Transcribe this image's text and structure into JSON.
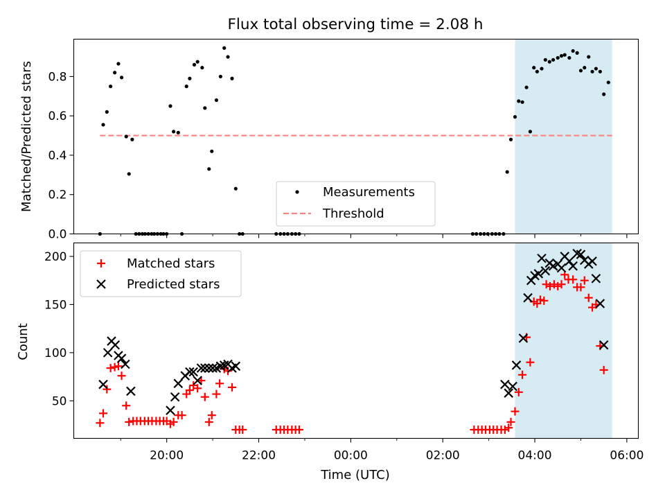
{
  "chart_data": {
    "title": "Flux total observing time = 2.08 h",
    "xlabel": "Time (UTC)",
    "x_unit": "hours UTC (values past 24 are the following day)",
    "xlim": [
      17.98,
      30.25
    ],
    "x_ticks": [
      {
        "value": 20,
        "label": "20:00"
      },
      {
        "value": 22,
        "label": "22:00"
      },
      {
        "value": 24,
        "label": "00:00"
      },
      {
        "value": 26,
        "label": "02:00"
      },
      {
        "value": 28,
        "label": "04:00"
      },
      {
        "value": 30,
        "label": "06:00"
      }
    ],
    "x_minor_ticks": [
      19,
      21,
      23,
      25,
      27,
      29
    ],
    "highlight": {
      "x0": 27.57,
      "x1": 29.68,
      "color": "#add8e6",
      "opacity": 0.5
    },
    "panels": [
      {
        "type": "scatter",
        "ylabel": "Matched/Predicted stars",
        "ylim": [
          0,
          0.99
        ],
        "y_ticks": [
          0.0,
          0.2,
          0.4,
          0.6,
          0.8
        ],
        "y_tick_labels": [
          "0.0",
          "0.2",
          "0.4",
          "0.6",
          "0.8"
        ],
        "legend": {
          "position": "lower center",
          "entries": [
            "Measurements",
            "Threshold"
          ]
        },
        "threshold": {
          "name": "Threshold",
          "y": 0.5,
          "x0": 18.55,
          "x1": 29.68,
          "color": "#ff8080",
          "style": "dashed"
        },
        "series": [
          {
            "name": "Measurements",
            "marker": "dot",
            "color": "#000000",
            "points": [
              [
                18.55,
                0.0
              ],
              [
                18.62,
                0.555
              ],
              [
                18.7,
                0.62
              ],
              [
                18.78,
                0.75
              ],
              [
                18.87,
                0.82
              ],
              [
                18.95,
                0.865
              ],
              [
                19.02,
                0.795
              ],
              [
                19.12,
                0.495
              ],
              [
                19.18,
                0.305
              ],
              [
                19.25,
                0.48
              ],
              [
                19.33,
                0.0
              ],
              [
                19.4,
                0.0
              ],
              [
                19.47,
                0.0
              ],
              [
                19.53,
                0.0
              ],
              [
                19.6,
                0.0
              ],
              [
                19.67,
                0.0
              ],
              [
                19.73,
                0.0
              ],
              [
                19.8,
                0.0
              ],
              [
                19.87,
                0.0
              ],
              [
                19.93,
                0.0
              ],
              [
                20.0,
                0.0
              ],
              [
                20.08,
                0.65
              ],
              [
                20.15,
                0.52
              ],
              [
                20.25,
                0.515
              ],
              [
                20.33,
                0.0
              ],
              [
                20.43,
                0.75
              ],
              [
                20.5,
                0.79
              ],
              [
                20.6,
                0.86
              ],
              [
                20.67,
                0.875
              ],
              [
                20.77,
                0.845
              ],
              [
                20.83,
                0.64
              ],
              [
                20.92,
                0.33
              ],
              [
                20.98,
                0.42
              ],
              [
                21.08,
                0.68
              ],
              [
                21.17,
                0.8
              ],
              [
                21.25,
                0.945
              ],
              [
                21.33,
                0.9
              ],
              [
                21.42,
                0.79
              ],
              [
                21.5,
                0.23
              ],
              [
                21.58,
                0.0
              ],
              [
                21.65,
                0.0
              ],
              [
                22.38,
                0.0
              ],
              [
                22.47,
                0.0
              ],
              [
                22.55,
                0.0
              ],
              [
                22.63,
                0.0
              ],
              [
                22.72,
                0.0
              ],
              [
                22.8,
                0.0
              ],
              [
                22.88,
                0.0
              ],
              [
                26.65,
                0.0
              ],
              [
                26.73,
                0.0
              ],
              [
                26.82,
                0.0
              ],
              [
                26.9,
                0.0
              ],
              [
                26.98,
                0.0
              ],
              [
                27.07,
                0.0
              ],
              [
                27.15,
                0.0
              ],
              [
                27.23,
                0.0
              ],
              [
                27.32,
                0.0
              ],
              [
                27.4,
                0.315
              ],
              [
                27.48,
                0.48
              ],
              [
                27.57,
                0.595
              ],
              [
                27.65,
                0.675
              ],
              [
                27.73,
                0.67
              ],
              [
                27.82,
                0.745
              ],
              [
                27.9,
                0.52
              ],
              [
                27.98,
                0.845
              ],
              [
                28.05,
                0.825
              ],
              [
                28.15,
                0.84
              ],
              [
                28.23,
                0.885
              ],
              [
                28.32,
                0.875
              ],
              [
                28.4,
                0.885
              ],
              [
                28.5,
                0.895
              ],
              [
                28.58,
                0.905
              ],
              [
                28.65,
                0.91
              ],
              [
                28.75,
                0.895
              ],
              [
                28.83,
                0.93
              ],
              [
                28.92,
                0.92
              ],
              [
                29.0,
                0.83
              ],
              [
                29.08,
                0.845
              ],
              [
                29.17,
                0.9
              ],
              [
                29.25,
                0.825
              ],
              [
                29.33,
                0.84
              ],
              [
                29.42,
                0.825
              ],
              [
                29.5,
                0.71
              ],
              [
                29.6,
                0.77
              ]
            ]
          }
        ]
      },
      {
        "type": "scatter",
        "ylabel": "Count",
        "ylim": [
          11,
          214
        ],
        "y_ticks": [
          50,
          100,
          150,
          200
        ],
        "y_tick_labels": [
          "50",
          "100",
          "150",
          "200"
        ],
        "legend": {
          "position": "upper left",
          "entries": [
            "Matched stars",
            "Predicted stars"
          ]
        },
        "series": [
          {
            "name": "Matched stars",
            "marker": "plus",
            "color": "#ff0000",
            "points": [
              [
                18.55,
                27
              ],
              [
                18.62,
                37
              ],
              [
                18.7,
                62
              ],
              [
                18.78,
                84
              ],
              [
                18.87,
                85
              ],
              [
                18.95,
                86
              ],
              [
                19.02,
                76
              ],
              [
                19.12,
                45
              ],
              [
                19.18,
                28
              ],
              [
                19.27,
                29
              ],
              [
                19.35,
                29
              ],
              [
                19.43,
                29
              ],
              [
                19.52,
                29
              ],
              [
                19.6,
                29
              ],
              [
                19.68,
                29
              ],
              [
                19.77,
                29
              ],
              [
                19.85,
                29
              ],
              [
                19.93,
                29
              ],
              [
                20.0,
                29
              ],
              [
                20.08,
                26
              ],
              [
                20.15,
                28
              ],
              [
                20.25,
                35
              ],
              [
                20.33,
                35
              ],
              [
                20.43,
                57
              ],
              [
                20.5,
                61
              ],
              [
                20.58,
                66
              ],
              [
                20.67,
                63
              ],
              [
                20.75,
                71
              ],
              [
                20.83,
                54
              ],
              [
                20.92,
                28
              ],
              [
                20.98,
                35
              ],
              [
                21.08,
                57
              ],
              [
                21.15,
                68
              ],
              [
                21.25,
                83
              ],
              [
                21.33,
                81
              ],
              [
                21.42,
                64
              ],
              [
                21.5,
                20
              ],
              [
                21.58,
                20
              ],
              [
                21.65,
                20
              ],
              [
                22.38,
                20
              ],
              [
                22.47,
                20
              ],
              [
                22.55,
                20
              ],
              [
                22.63,
                20
              ],
              [
                22.72,
                20
              ],
              [
                22.8,
                20
              ],
              [
                22.88,
                20
              ],
              [
                26.68,
                20
              ],
              [
                26.77,
                20
              ],
              [
                26.85,
                20
              ],
              [
                26.93,
                20
              ],
              [
                27.02,
                20
              ],
              [
                27.1,
                20
              ],
              [
                27.18,
                20
              ],
              [
                27.27,
                20
              ],
              [
                27.35,
                20
              ],
              [
                27.43,
                22
              ],
              [
                27.48,
                28
              ],
              [
                27.57,
                39
              ],
              [
                27.65,
                59
              ],
              [
                27.73,
                77
              ],
              [
                27.82,
                116
              ],
              [
                27.9,
                90
              ],
              [
                27.98,
                153
              ],
              [
                28.05,
                151
              ],
              [
                28.12,
                155
              ],
              [
                28.2,
                154
              ],
              [
                28.25,
                171
              ],
              [
                28.33,
                169
              ],
              [
                28.42,
                171
              ],
              [
                28.5,
                169
              ],
              [
                28.58,
                171
              ],
              [
                28.65,
                181
              ],
              [
                28.73,
                176
              ],
              [
                28.83,
                176
              ],
              [
                28.92,
                168
              ],
              [
                29.0,
                168
              ],
              [
                29.08,
                175
              ],
              [
                29.17,
                157
              ],
              [
                29.25,
                147
              ],
              [
                29.33,
                150
              ],
              [
                29.42,
                107
              ],
              [
                29.5,
                82
              ]
            ]
          },
          {
            "name": "Predicted stars",
            "marker": "x",
            "color": "#000000",
            "points": [
              [
                18.62,
                67
              ],
              [
                18.72,
                100
              ],
              [
                18.8,
                112
              ],
              [
                18.88,
                108
              ],
              [
                18.95,
                97
              ],
              [
                19.02,
                94
              ],
              [
                19.1,
                88
              ],
              [
                19.22,
                60
              ],
              [
                20.08,
                40
              ],
              [
                20.18,
                54
              ],
              [
                20.25,
                68
              ],
              [
                20.4,
                76
              ],
              [
                20.5,
                80
              ],
              [
                20.58,
                80
              ],
              [
                20.67,
                71
              ],
              [
                20.75,
                84
              ],
              [
                20.83,
                84
              ],
              [
                20.92,
                84
              ],
              [
                21.0,
                84
              ],
              [
                21.08,
                84
              ],
              [
                21.17,
                86
              ],
              [
                21.25,
                87
              ],
              [
                21.33,
                88
              ],
              [
                21.42,
                84
              ],
              [
                21.5,
                86
              ],
              [
                27.35,
                67
              ],
              [
                27.43,
                58
              ],
              [
                27.52,
                65
              ],
              [
                27.6,
                87
              ],
              [
                27.75,
                115
              ],
              [
                27.85,
                157
              ],
              [
                27.92,
                175
              ],
              [
                28.0,
                180
              ],
              [
                28.08,
                182
              ],
              [
                28.15,
                198
              ],
              [
                28.23,
                185
              ],
              [
                28.32,
                193
              ],
              [
                28.4,
                190
              ],
              [
                28.5,
                192
              ],
              [
                28.58,
                188
              ],
              [
                28.65,
                200
              ],
              [
                28.75,
                195
              ],
              [
                28.83,
                190
              ],
              [
                28.92,
                203
              ],
              [
                29.0,
                202
              ],
              [
                29.08,
                196
              ],
              [
                29.17,
                192
              ],
              [
                29.25,
                195
              ],
              [
                29.33,
                177
              ],
              [
                29.42,
                151
              ],
              [
                29.5,
                108
              ]
            ]
          }
        ]
      }
    ]
  }
}
